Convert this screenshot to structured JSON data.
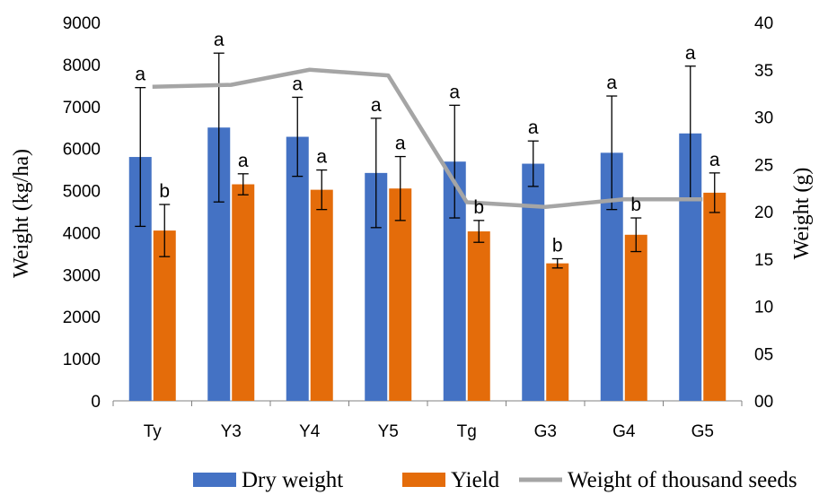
{
  "chart_data": {
    "type": "bar",
    "categories": [
      "Ty",
      "Y3",
      "Y4",
      "Y5",
      "Tg",
      "G3",
      "G4",
      "G5"
    ],
    "series": [
      {
        "name": "Dry weight",
        "kind": "bar",
        "axis": "left",
        "color": "#4472C4",
        "values": [
          5800,
          6500,
          6280,
          5420,
          5690,
          5640,
          5900,
          6360
        ],
        "error": [
          1650,
          1770,
          940,
          1300,
          1340,
          540,
          1350,
          1600
        ],
        "labels": [
          "a",
          "a",
          "a",
          "a",
          "a",
          "a",
          "a",
          "a"
        ]
      },
      {
        "name": "Yield",
        "kind": "bar",
        "axis": "left",
        "color": "#E46C0A",
        "values": [
          4050,
          5150,
          5020,
          5050,
          4030,
          3270,
          3950,
          4950
        ],
        "error": [
          620,
          250,
          470,
          760,
          260,
          110,
          400,
          470
        ],
        "labels": [
          "b",
          "a",
          "a",
          "a",
          "b",
          "b",
          "b",
          "a"
        ]
      },
      {
        "name": "Weight of thousand seeds",
        "kind": "line",
        "axis": "right",
        "color": "#A5A5A5",
        "values": [
          33.2,
          33.4,
          35.0,
          34.4,
          21.0,
          20.5,
          21.3,
          21.3
        ]
      }
    ],
    "ylabel": "Weight (kg/ha)",
    "y2label": "Weight (g)",
    "ylim": [
      0,
      9000
    ],
    "y2lim": [
      0,
      40
    ],
    "yticks": [
      "0",
      "1000",
      "2000",
      "3000",
      "4000",
      "5000",
      "6000",
      "7000",
      "8000",
      "9000"
    ],
    "y2ticks": [
      "00",
      "05",
      "10",
      "15",
      "20",
      "25",
      "30",
      "35",
      "40"
    ],
    "grid": false,
    "legend": "bottom"
  }
}
